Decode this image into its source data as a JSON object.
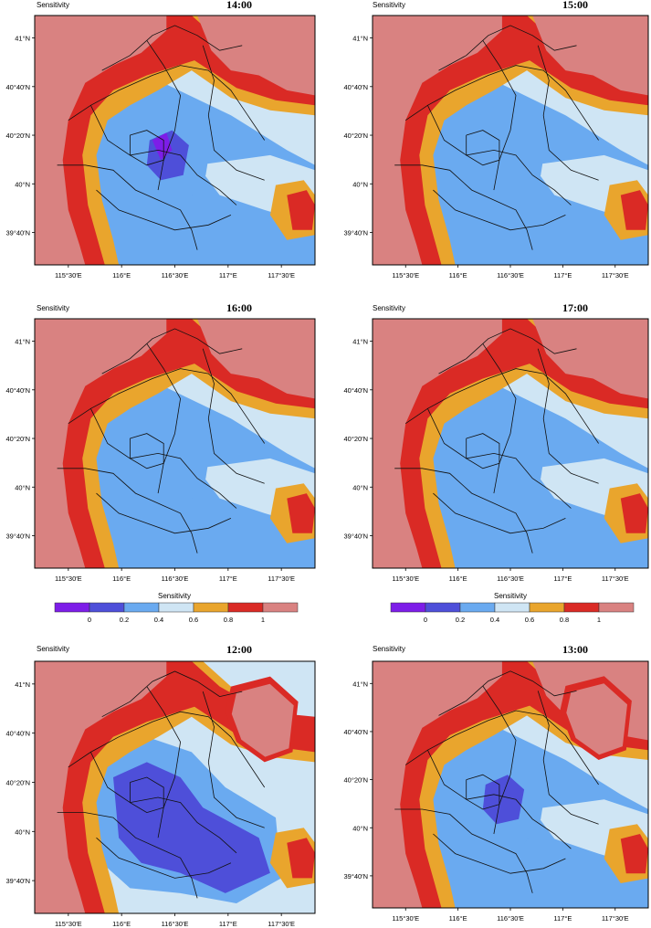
{
  "colorbar": {
    "title": "Sensitivity",
    "colors": [
      "#7d1de8",
      "#4e4fd9",
      "#6aaaf0",
      "#cfe5f4",
      "#e9a52d",
      "#da2a25",
      "#d98281"
    ],
    "tick_labels": [
      "0",
      "0.2",
      "0.4",
      "0.6",
      "0.8",
      "1"
    ]
  },
  "panel_common": {
    "sensitivity_label": "Sensitivity",
    "x_tick_labels": [
      "115°30′E",
      "116°E",
      "116°30′E",
      "117°E",
      "117°30′E"
    ],
    "y_tick_labels": [
      "41°N",
      "40°40′N",
      "40°20′N",
      "40°N",
      "39°40′N"
    ]
  },
  "chart_data": [
    {
      "type": "heatmap",
      "title": "14:00",
      "variable": "Sensitivity",
      "levels": [
        0,
        0.2,
        0.4,
        0.6,
        0.8,
        1
      ]
    },
    {
      "type": "heatmap",
      "title": "15:00",
      "variable": "Sensitivity",
      "levels": [
        0,
        0.2,
        0.4,
        0.6,
        0.8,
        1
      ]
    },
    {
      "type": "heatmap",
      "title": "16:00",
      "variable": "Sensitivity",
      "levels": [
        0,
        0.2,
        0.4,
        0.6,
        0.8,
        1
      ]
    },
    {
      "type": "heatmap",
      "title": "17:00",
      "variable": "Sensitivity",
      "levels": [
        0,
        0.2,
        0.4,
        0.6,
        0.8,
        1
      ]
    },
    {
      "type": "heatmap",
      "title": "12:00",
      "variable": "Sensitivity",
      "levels": [
        0,
        0.2,
        0.4,
        0.6,
        0.8,
        1
      ]
    },
    {
      "type": "heatmap",
      "title": "13:00",
      "variable": "Sensitivity",
      "levels": [
        0,
        0.2,
        0.4,
        0.6,
        0.8,
        1
      ]
    }
  ]
}
